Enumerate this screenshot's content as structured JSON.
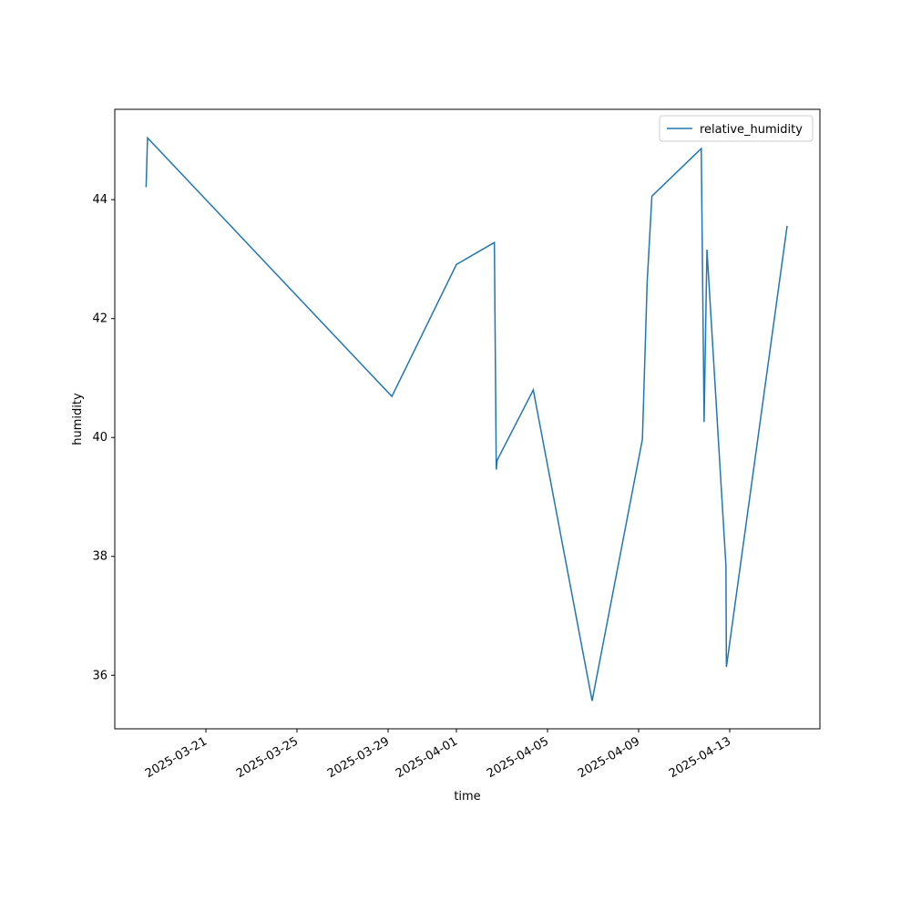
{
  "chart_data": {
    "type": "line",
    "x_label": "time",
    "y_label": "humidity",
    "x": [
      "2025-03-18T09:00",
      "2025-03-18T10:30",
      "2025-03-29T04:00",
      "2025-04-01T00:00",
      "2025-04-02T16:00",
      "2025-04-02T18:00",
      "2025-04-02T19:00",
      "2025-04-04T09:00",
      "2025-04-06T23:00",
      "2025-04-09T04:00",
      "2025-04-09T09:00",
      "2025-04-09T14:00",
      "2025-04-11T18:00",
      "2025-04-11T21:00",
      "2025-04-12T00:00",
      "2025-04-12T20:00",
      "2025-04-12T20:30",
      "2025-04-15T12:30"
    ],
    "series": [
      {
        "name": "relative_humidity",
        "color": "#1f77b4",
        "values": [
          44.21,
          45.04,
          40.69,
          42.91,
          43.28,
          39.46,
          39.62,
          40.8,
          35.57,
          39.97,
          42.61,
          44.06,
          44.86,
          40.26,
          43.16,
          37.85,
          36.14,
          43.56
        ]
      }
    ],
    "xlim": [
      "2025-03-17T00:00",
      "2025-04-16T23:02"
    ],
    "xticks": [
      "2025-03-21",
      "2025-03-25",
      "2025-03-29",
      "2025-04-01",
      "2025-04-05",
      "2025-04-09",
      "2025-04-13"
    ],
    "ylim": [
      35.1,
      45.52
    ],
    "yticks": [
      36,
      38,
      40,
      42,
      44
    ],
    "legend": "upper right"
  }
}
